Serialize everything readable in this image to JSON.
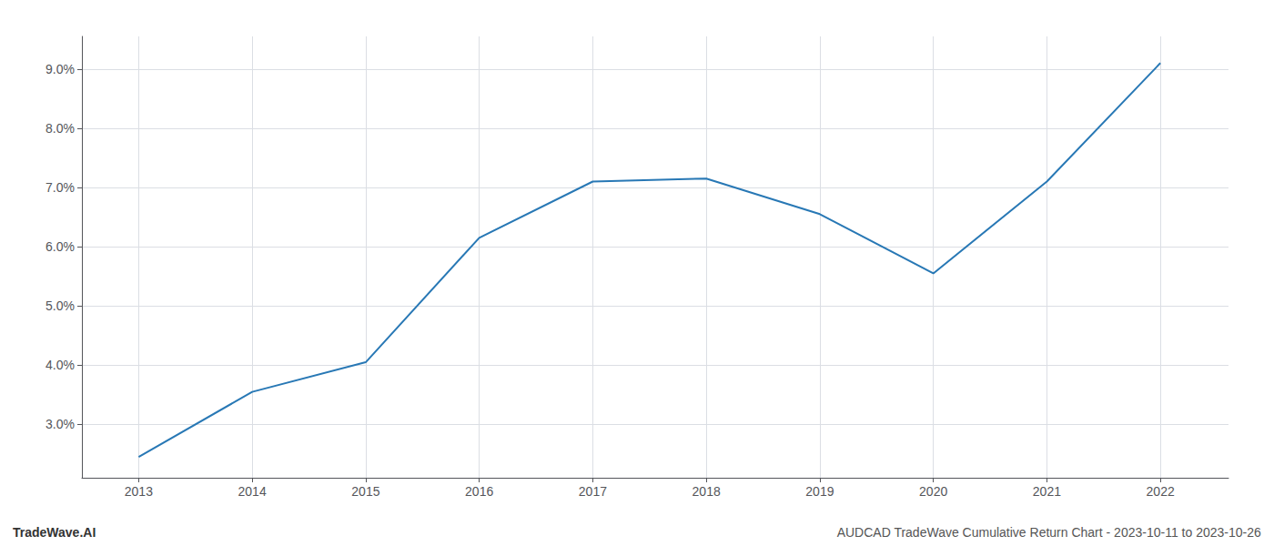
{
  "chart_data": {
    "type": "line",
    "x": [
      2013,
      2014,
      2015,
      2016,
      2017,
      2018,
      2019,
      2020,
      2021,
      2022
    ],
    "values": [
      2.45,
      3.55,
      4.05,
      6.15,
      7.1,
      7.15,
      6.55,
      5.55,
      7.1,
      9.1
    ],
    "color": "#2878b5",
    "xlim": [
      2012.5,
      2022.6
    ],
    "ylim": [
      2.1,
      9.55
    ],
    "xticks": [
      2013,
      2014,
      2015,
      2016,
      2017,
      2018,
      2019,
      2020,
      2021,
      2022
    ],
    "yticks": [
      {
        "value": 3.0,
        "label": "3.0%"
      },
      {
        "value": 4.0,
        "label": "4.0%"
      },
      {
        "value": 5.0,
        "label": "5.0%"
      },
      {
        "value": 6.0,
        "label": "6.0%"
      },
      {
        "value": 7.0,
        "label": "7.0%"
      },
      {
        "value": 8.0,
        "label": "8.0%"
      },
      {
        "value": 9.0,
        "label": "9.0%"
      }
    ],
    "grid": true,
    "annotations": [
      "TradeWave.AI",
      "AUDCAD TradeWave Cumulative Return Chart - 2023-10-11 to 2023-10-26"
    ]
  }
}
